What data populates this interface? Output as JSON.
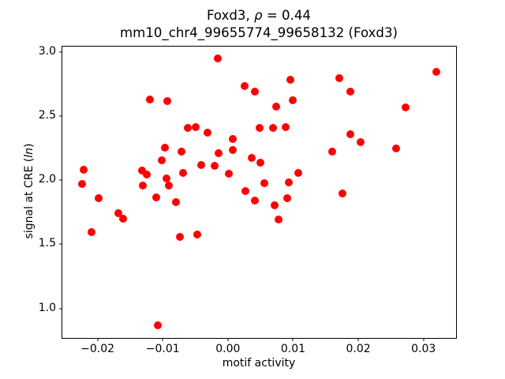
{
  "figure": {
    "title_line1": [
      {
        "text": "Foxd3, "
      },
      {
        "text": "ρ",
        "italic": true
      },
      {
        "text": " = 0.44"
      }
    ],
    "title_line2": "mm10_chr4_99655774_99658132 (Foxd3)",
    "xlabel": "motif activity",
    "ylabel_segments": [
      {
        "text": "signal at CRE ("
      },
      {
        "text": "ln",
        "italic": true
      },
      {
        "text": ")"
      }
    ]
  },
  "chart_data": {
    "type": "scatter",
    "title": "Foxd3, ρ = 0.44",
    "subtitle": "mm10_chr4_99655774_99658132 (Foxd3)",
    "xlabel": "motif activity",
    "ylabel": "signal at CRE (ln)",
    "marker_color": "#ff0000",
    "marker_size_px": 10,
    "grid": false,
    "legend": null,
    "xlim": [
      -0.0254,
      0.035
    ],
    "ylim": [
      0.769,
      3.043
    ],
    "x_ticks": [
      -0.02,
      -0.01,
      0.0,
      0.01,
      0.02,
      0.03
    ],
    "x_tick_labels": [
      "−0.02",
      "−0.01",
      "0.00",
      "0.01",
      "0.02",
      "0.03"
    ],
    "y_ticks": [
      1.0,
      1.5,
      2.0,
      2.5,
      3.0
    ],
    "y_tick_labels": [
      "1.0",
      "1.5",
      "2.0",
      "2.5",
      "3.0"
    ],
    "points": [
      [
        -0.0015,
        2.951
      ],
      [
        0.0026,
        2.735
      ],
      [
        0.0041,
        2.69
      ],
      [
        -0.012,
        2.632
      ],
      [
        -0.0093,
        2.617
      ],
      [
        -0.0062,
        2.407
      ],
      [
        -0.0049,
        2.412
      ],
      [
        -0.0031,
        2.369
      ],
      [
        0.0007,
        2.322
      ],
      [
        0.0049,
        2.407
      ],
      [
        0.0008,
        2.235
      ],
      [
        -0.0097,
        2.255
      ],
      [
        -0.0071,
        2.222
      ],
      [
        -0.0014,
        2.212
      ],
      [
        0.0037,
        2.175
      ],
      [
        -0.0102,
        2.154
      ],
      [
        -0.0221,
        2.082
      ],
      [
        -0.0132,
        2.074
      ],
      [
        -0.0041,
        2.117
      ],
      [
        -0.002,
        2.114
      ],
      [
        0.0002,
        2.053
      ],
      [
        -0.0124,
        2.046
      ],
      [
        -0.0224,
        1.972
      ],
      [
        -0.0094,
        2.012
      ],
      [
        -0.0131,
        1.957
      ],
      [
        -0.0091,
        1.957
      ],
      [
        -0.0198,
        1.858
      ],
      [
        -0.011,
        1.867
      ],
      [
        0.0027,
        1.915
      ],
      [
        0.032,
        2.845
      ],
      [
        0.0096,
        2.786
      ],
      [
        0.0171,
        2.796
      ],
      [
        0.0188,
        2.69
      ],
      [
        0.01,
        2.622
      ],
      [
        0.0074,
        2.576
      ],
      [
        0.0272,
        2.571
      ],
      [
        0.0069,
        2.41
      ],
      [
        0.0088,
        2.412
      ],
      [
        0.0188,
        2.358
      ],
      [
        0.0203,
        2.295
      ],
      [
        0.016,
        2.226
      ],
      [
        0.0258,
        2.251
      ],
      [
        0.005,
        2.136
      ],
      [
        -0.008,
        1.826
      ],
      [
        -0.0168,
        1.741
      ],
      [
        -0.0161,
        1.702
      ],
      [
        -0.0209,
        1.593
      ],
      [
        -0.0074,
        1.557
      ],
      [
        -0.0047,
        1.579
      ],
      [
        0.0041,
        1.844
      ],
      [
        -0.0108,
        0.868
      ],
      [
        0.0071,
        1.803
      ],
      [
        0.0091,
        1.858
      ],
      [
        0.0078,
        1.696
      ],
      [
        0.0176,
        1.895
      ],
      [
        0.0108,
        2.056
      ],
      [
        0.0056,
        1.977
      ],
      [
        0.0093,
        1.98
      ],
      [
        -0.0069,
        2.055
      ]
    ]
  }
}
